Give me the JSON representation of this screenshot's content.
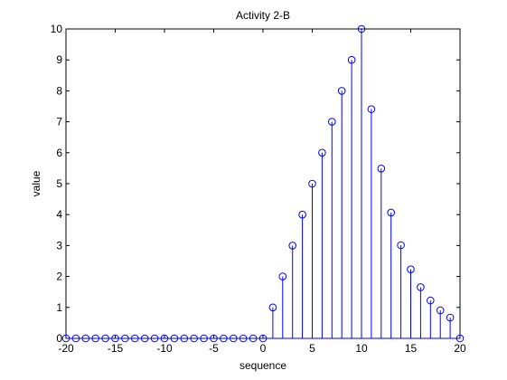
{
  "chart_data": {
    "type": "stem",
    "title": "Activity 2-B",
    "xlabel": "sequence",
    "ylabel": "value",
    "xlim": [
      -20,
      20
    ],
    "ylim": [
      0,
      10
    ],
    "x_ticks": [
      -20,
      -15,
      -10,
      -5,
      0,
      5,
      10,
      15,
      20
    ],
    "y_ticks": [
      0,
      1,
      2,
      3,
      4,
      5,
      6,
      7,
      8,
      9,
      10
    ],
    "grid": false,
    "legend": "none",
    "x": [
      -20,
      -19,
      -18,
      -17,
      -16,
      -15,
      -14,
      -13,
      -12,
      -11,
      -10,
      -9,
      -8,
      -7,
      -6,
      -5,
      -4,
      -3,
      -2,
      -1,
      0,
      1,
      2,
      3,
      4,
      5,
      6,
      7,
      8,
      9,
      10,
      11,
      12,
      13,
      14,
      15,
      16,
      17,
      18,
      19,
      20
    ],
    "values": [
      0,
      0,
      0,
      0,
      0,
      0,
      0,
      0,
      0,
      0,
      0,
      0,
      0,
      0,
      0,
      0,
      0,
      0,
      0,
      0,
      0,
      1,
      2,
      3,
      4,
      5,
      6,
      7,
      8,
      9,
      10,
      7.408,
      5.488,
      4.066,
      3.012,
      2.231,
      1.653,
      1.225,
      0.907,
      0.672,
      0
    ],
    "series_color": "#0000ff"
  }
}
